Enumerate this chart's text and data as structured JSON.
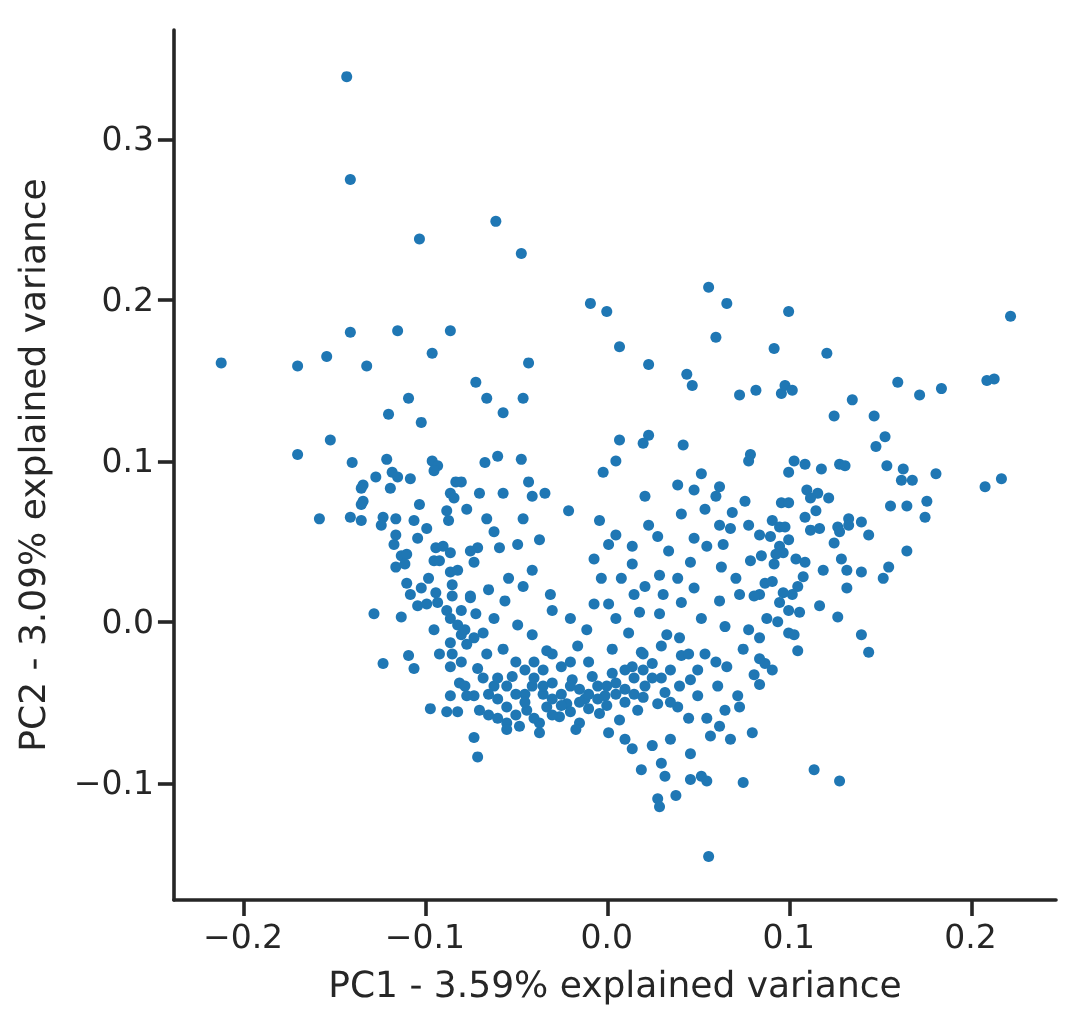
{
  "chart_data": {
    "type": "scatter",
    "xlabel": "PC1 - 3.59% explained variance",
    "ylabel": "PC2 - 3.09% explained variance",
    "color": "#1f77b4",
    "marker": "circle",
    "grid": false,
    "xlim": [
      -0.238,
      0.247
    ],
    "ylim": [
      -0.173,
      0.368
    ],
    "xticks": [
      {
        "value": -0.2,
        "label": "−0.2"
      },
      {
        "value": -0.1,
        "label": "−0.1"
      },
      {
        "value": 0,
        "label": "0.0"
      },
      {
        "value": 0.1,
        "label": "0.1"
      },
      {
        "value": 0.2,
        "label": "0.2"
      }
    ],
    "yticks": [
      {
        "value": -0.1,
        "label": "−0.1"
      },
      {
        "value": 0,
        "label": "0.0"
      },
      {
        "value": 0.1,
        "label": "0.1"
      },
      {
        "value": 0.2,
        "label": "0.2"
      },
      {
        "value": 0.3,
        "label": "0.3"
      }
    ],
    "x": [
      -0.143,
      -0.141,
      -0.103,
      -0.141,
      -0.115,
      -0.086,
      -0.212,
      -0.17,
      -0.154,
      -0.132,
      -0.096,
      -0.109,
      -0.12,
      -0.102,
      -0.152,
      -0.17,
      -0.14,
      -0.121,
      -0.096,
      -0.093,
      -0.061,
      -0.047,
      -0.009,
      0.0,
      0.056,
      0.066,
      0.06,
      0.007,
      0.023,
      -0.043,
      -0.072,
      -0.066,
      -0.046,
      -0.057,
      0.044,
      0.047,
      0.073,
      0.082,
      0.007,
      0.023,
      0.02,
      0.042,
      0.005,
      -0.067,
      -0.06,
      -0.047,
      0.079,
      0.078,
      0.1,
      0.222,
      0.092,
      0.121,
      0.096,
      0.098,
      0.102,
      0.16,
      0.172,
      0.184,
      0.209,
      0.213,
      0.135,
      0.125,
      0.147,
      0.153,
      0.148,
      0.103,
      0.109,
      0.118,
      0.128,
      0.131,
      0.154,
      0.163,
      0.1,
      0.162,
      0.168,
      0.181,
      0.208,
      0.217,
      0.096,
      0.1,
      0.11,
      0.116,
      0.112,
      0.122,
      0.115,
      0.109,
      0.156,
      0.165,
      0.176,
      0.175,
      0.091,
      0.095,
      0.098,
      0.112,
      0.117,
      0.127,
      0.133,
      0.133,
      0.14,
      0.144,
      0.128,
      0.125,
      0.09,
      0.084,
      0.1,
      0.095,
      0.097,
      0.093,
      0.092,
      0.085,
      0.104,
      0.109,
      0.129,
      0.119,
      0.132,
      0.14,
      0.165,
      0.155,
      0.152,
      0.108,
      0.105,
      0.132,
      0.087,
      0.091,
      0.102,
      0.097,
      0.084,
      0.095,
      0.1,
      0.106,
      0.117,
      0.127,
      0.088,
      0.094,
      0.1,
      0.103,
      0.14,
      0.144,
      0.105,
      0.084,
      0.087,
      0.091,
      0.084,
      0.114,
      0.128,
      -0.002,
      0.052,
      -0.07,
      -0.057,
      -0.043,
      -0.041,
      -0.034,
      -0.021,
      0.021,
      0.039,
      0.048,
      0.062,
      0.06,
      0.076,
      0.069,
      0.054,
      0.041,
      -0.046,
      -0.066,
      -0.004,
      0.023,
      0.062,
      0.068,
      0.078,
      -0.062,
      0.005,
      0.028,
      0.048,
      0.055,
      -0.037,
      -0.049,
      -0.071,
      -0.059,
      0.001,
      0.014,
      0.034,
      0.064,
      0.079,
      -0.007,
      0.014,
      0.046,
      -0.073,
      -0.041,
      -0.054,
      -0.003,
      0.008,
      0.029,
      0.039,
      0.063,
      0.071,
      -0.046,
      0.021,
      0.048,
      -0.065,
      -0.075,
      -0.056,
      -0.031,
      -0.007,
      0.001,
      0.015,
      0.031,
      0.041,
      0.062,
      0.073,
      0.081,
      -0.062,
      -0.049,
      -0.03,
      -0.02,
      0.005,
      0.018,
      0.029,
      0.052,
      0.065,
      0.078,
      -0.073,
      -0.068,
      -0.041,
      -0.011,
      0.012,
      0.033,
      0.075,
      0.084,
      -0.071,
      -0.057,
      -0.033,
      -0.016,
      0.003,
      0.019,
      0.041,
      0.054,
      0.066,
      0.081,
      -0.073,
      -0.062,
      -0.052,
      -0.041,
      -0.03,
      -0.019,
      -0.008,
      0.003,
      0.014,
      0.025,
      0.035,
      0.046,
      -0.055,
      -0.044,
      -0.033,
      -0.022,
      -0.012,
      -0.001,
      0.01,
      0.021,
      0.032,
      -0.055,
      -0.048,
      -0.037,
      -0.026,
      -0.015,
      -0.004,
      0.007,
      0.017,
      0.028,
      0.039,
      0.05,
      0.061,
      0.072,
      0.073,
      0.08,
      0.068,
      0.057,
      0.046,
      0.035,
      0.025,
      0.014,
      0.01,
      0.019,
      0.03,
      0.032,
      0.046,
      0.052,
      0.055,
      0.038,
      0.028,
      0.029,
      0.075,
      0.056,
      -0.071,
      -0.073,
      -0.055,
      -0.037,
      -0.017,
      0.001,
      -0.045,
      -0.035,
      -0.025,
      -0.015,
      -0.005,
      0.005,
      0.015,
      -0.05,
      -0.04,
      -0.03,
      -0.02,
      -0.01,
      0.0,
      0.01,
      0.02,
      -0.06,
      -0.065,
      -0.035,
      -0.025,
      0.03,
      0.04,
      0.05,
      0.06,
      0.02,
      -0.01,
      -0.127,
      -0.118,
      -0.115,
      -0.108,
      -0.134,
      -0.135,
      -0.119,
      -0.095,
      -0.083,
      -0.08,
      -0.086,
      -0.084,
      -0.134,
      -0.135,
      -0.103,
      -0.088,
      -0.077,
      -0.158,
      -0.141,
      -0.135,
      -0.123,
      -0.116,
      -0.124,
      -0.106,
      -0.099,
      -0.087,
      -0.116,
      -0.104,
      -0.117,
      -0.094,
      -0.09,
      -0.086,
      -0.075,
      -0.113,
      -0.11,
      -0.095,
      -0.092,
      -0.116,
      -0.111,
      -0.086,
      -0.082,
      -0.098,
      -0.11,
      -0.102,
      -0.085,
      -0.108,
      -0.094,
      -0.085,
      -0.075,
      -0.104,
      -0.099,
      -0.093,
      -0.088,
      -0.08,
      -0.128,
      -0.113,
      -0.086,
      -0.082,
      -0.095,
      -0.08,
      -0.086,
      -0.077,
      -0.092,
      -0.085,
      -0.109,
      -0.123,
      -0.106,
      -0.086,
      -0.081,
      -0.086,
      -0.077,
      -0.097,
      -0.088,
      -0.082,
      -0.06,
      -0.055,
      -0.05,
      -0.045,
      -0.04,
      -0.035,
      -0.03,
      -0.025,
      -0.02,
      -0.015,
      -0.01,
      -0.005,
      0.0,
      0.005,
      0.01,
      0.015,
      0.02,
      0.025,
      -0.065,
      -0.07,
      -0.06,
      -0.05,
      -0.045,
      -0.04,
      -0.03,
      -0.02,
      0.03,
      0.04,
      0.045,
      0.035,
      0.045,
      0.055,
      0.065,
      0.062,
      -0.068,
      -0.078,
      -0.08,
      -0.078,
      -0.072,
      -0.066
    ],
    "values": [
      0.339,
      0.275,
      0.238,
      0.18,
      0.181,
      0.181,
      0.161,
      0.159,
      0.165,
      0.159,
      0.167,
      0.139,
      0.129,
      0.124,
      0.113,
      0.104,
      0.099,
      0.101,
      0.1,
      0.097,
      0.249,
      0.229,
      0.198,
      0.193,
      0.208,
      0.198,
      0.177,
      0.171,
      0.16,
      0.161,
      0.149,
      0.139,
      0.139,
      0.13,
      0.154,
      0.147,
      0.141,
      0.144,
      0.113,
      0.116,
      0.111,
      0.11,
      0.1,
      0.099,
      0.103,
      0.101,
      0.104,
      0.1,
      0.193,
      0.19,
      0.17,
      0.167,
      0.142,
      0.147,
      0.144,
      0.149,
      0.141,
      0.145,
      0.15,
      0.151,
      0.138,
      0.128,
      0.128,
      0.115,
      0.109,
      0.1,
      0.098,
      0.095,
      0.098,
      0.097,
      0.097,
      0.095,
      0.093,
      0.088,
      0.088,
      0.092,
      0.084,
      0.089,
      0.074,
      0.074,
      0.082,
      0.08,
      0.077,
      0.077,
      0.069,
      0.065,
      0.072,
      0.072,
      0.075,
      0.065,
      0.063,
      0.059,
      0.059,
      0.057,
      0.058,
      0.059,
      0.064,
      0.06,
      0.062,
      0.054,
      0.056,
      0.049,
      0.053,
      0.054,
      0.051,
      0.047,
      0.043,
      0.042,
      0.036,
      0.041,
      0.039,
      0.037,
      0.039,
      0.032,
      0.032,
      0.031,
      0.044,
      0.034,
      0.027,
      0.028,
      0.022,
      0.021,
      0.024,
      0.025,
      0.017,
      0.018,
      0.017,
      0.012,
      0.007,
      0.006,
      0.01,
      0.003,
      0.002,
      0.0,
      -0.007,
      -0.008,
      -0.008,
      -0.019,
      -0.018,
      -0.01,
      -0.026,
      -0.03,
      -0.039,
      -0.092,
      -0.099,
      0.093,
      0.092,
      0.08,
      0.08,
      0.087,
      0.078,
      0.08,
      0.069,
      0.078,
      0.085,
      0.082,
      0.084,
      0.078,
      0.075,
      0.068,
      0.07,
      0.067,
      0.064,
      0.064,
      0.063,
      0.06,
      0.06,
      0.058,
      0.06,
      0.056,
      0.054,
      0.053,
      0.052,
      0.047,
      0.051,
      0.048,
      0.046,
      0.046,
      0.048,
      0.047,
      0.044,
      0.048,
      0.038,
      0.039,
      0.036,
      0.037,
      0.037,
      0.032,
      0.027,
      0.027,
      0.027,
      0.029,
      0.027,
      0.034,
      0.027,
      0.022,
      0.022,
      0.021,
      0.02,
      0.015,
      0.013,
      0.017,
      0.011,
      0.011,
      0.017,
      0.017,
      0.012,
      0.013,
      0.017,
      0.016,
      0.002,
      -0.002,
      0.007,
      0.002,
      0.002,
      0.006,
      0.005,
      0.002,
      -0.003,
      -0.005,
      -0.01,
      -0.007,
      -0.008,
      -0.005,
      -0.007,
      -0.008,
      -0.017,
      -0.023,
      -0.029,
      -0.017,
      -0.018,
      -0.015,
      -0.017,
      -0.019,
      -0.021,
      -0.02,
      -0.028,
      -0.033,
      -0.046,
      -0.04,
      -0.034,
      -0.04,
      -0.038,
      -0.036,
      -0.034,
      -0.032,
      -0.028,
      -0.026,
      -0.03,
      -0.036,
      -0.053,
      -0.055,
      -0.053,
      -0.051,
      -0.048,
      -0.046,
      -0.042,
      -0.04,
      -0.044,
      -0.063,
      -0.065,
      -0.063,
      -0.059,
      -0.063,
      -0.057,
      -0.061,
      -0.055,
      -0.051,
      -0.053,
      -0.046,
      -0.04,
      -0.046,
      -0.053,
      -0.069,
      -0.073,
      -0.071,
      -0.082,
      -0.073,
      -0.077,
      -0.079,
      -0.073,
      -0.092,
      -0.088,
      -0.096,
      -0.098,
      -0.096,
      -0.099,
      -0.108,
      -0.11,
      -0.115,
      -0.1,
      -0.146,
      -0.084,
      -0.072,
      -0.067,
      -0.069,
      -0.067,
      -0.069,
      -0.045,
      -0.045,
      -0.045,
      -0.042,
      -0.04,
      -0.038,
      -0.035,
      -0.058,
      -0.06,
      -0.058,
      -0.056,
      -0.054,
      -0.052,
      -0.05,
      -0.047,
      -0.048,
      -0.058,
      -0.03,
      -0.028,
      -0.035,
      -0.04,
      -0.03,
      -0.025,
      -0.02,
      -0.025,
      0.09,
      0.093,
      0.09,
      0.089,
      0.085,
      0.083,
      0.083,
      0.094,
      0.087,
      0.087,
      0.08,
      0.077,
      0.075,
      0.073,
      0.073,
      0.069,
      0.07,
      0.064,
      0.065,
      0.063,
      0.065,
      0.064,
      0.06,
      0.063,
      0.058,
      0.063,
      0.054,
      0.052,
      0.048,
      0.046,
      0.047,
      0.043,
      0.044,
      0.041,
      0.042,
      0.038,
      0.038,
      0.034,
      0.036,
      0.031,
      0.032,
      0.027,
      0.024,
      0.021,
      0.023,
      0.017,
      0.018,
      0.016,
      0.016,
      0.01,
      0.011,
      0.012,
      0.007,
      0.007,
      0.005,
      0.003,
      0.002,
      -0.002,
      -0.005,
      -0.008,
      -0.013,
      -0.014,
      -0.02,
      -0.02,
      -0.021,
      -0.026,
      -0.029,
      -0.028,
      -0.038,
      -0.046,
      -0.046,
      -0.054,
      -0.056,
      -0.056,
      -0.035,
      -0.04,
      -0.045,
      -0.05,
      -0.035,
      -0.04,
      -0.048,
      -0.052,
      -0.04,
      -0.05,
      -0.045,
      -0.048,
      -0.04,
      -0.045,
      -0.03,
      -0.045,
      -0.03,
      -0.035,
      -0.045,
      -0.055,
      -0.06,
      -0.025,
      -0.03,
      -0.025,
      -0.02,
      -0.025,
      -0.015,
      -0.01,
      -0.02,
      -0.05,
      -0.06,
      -0.06,
      -0.055,
      -0.065,
      -0.035,
      -0.04,
      -0.025,
      -0.005,
      0.005,
      -0.02
    ]
  }
}
